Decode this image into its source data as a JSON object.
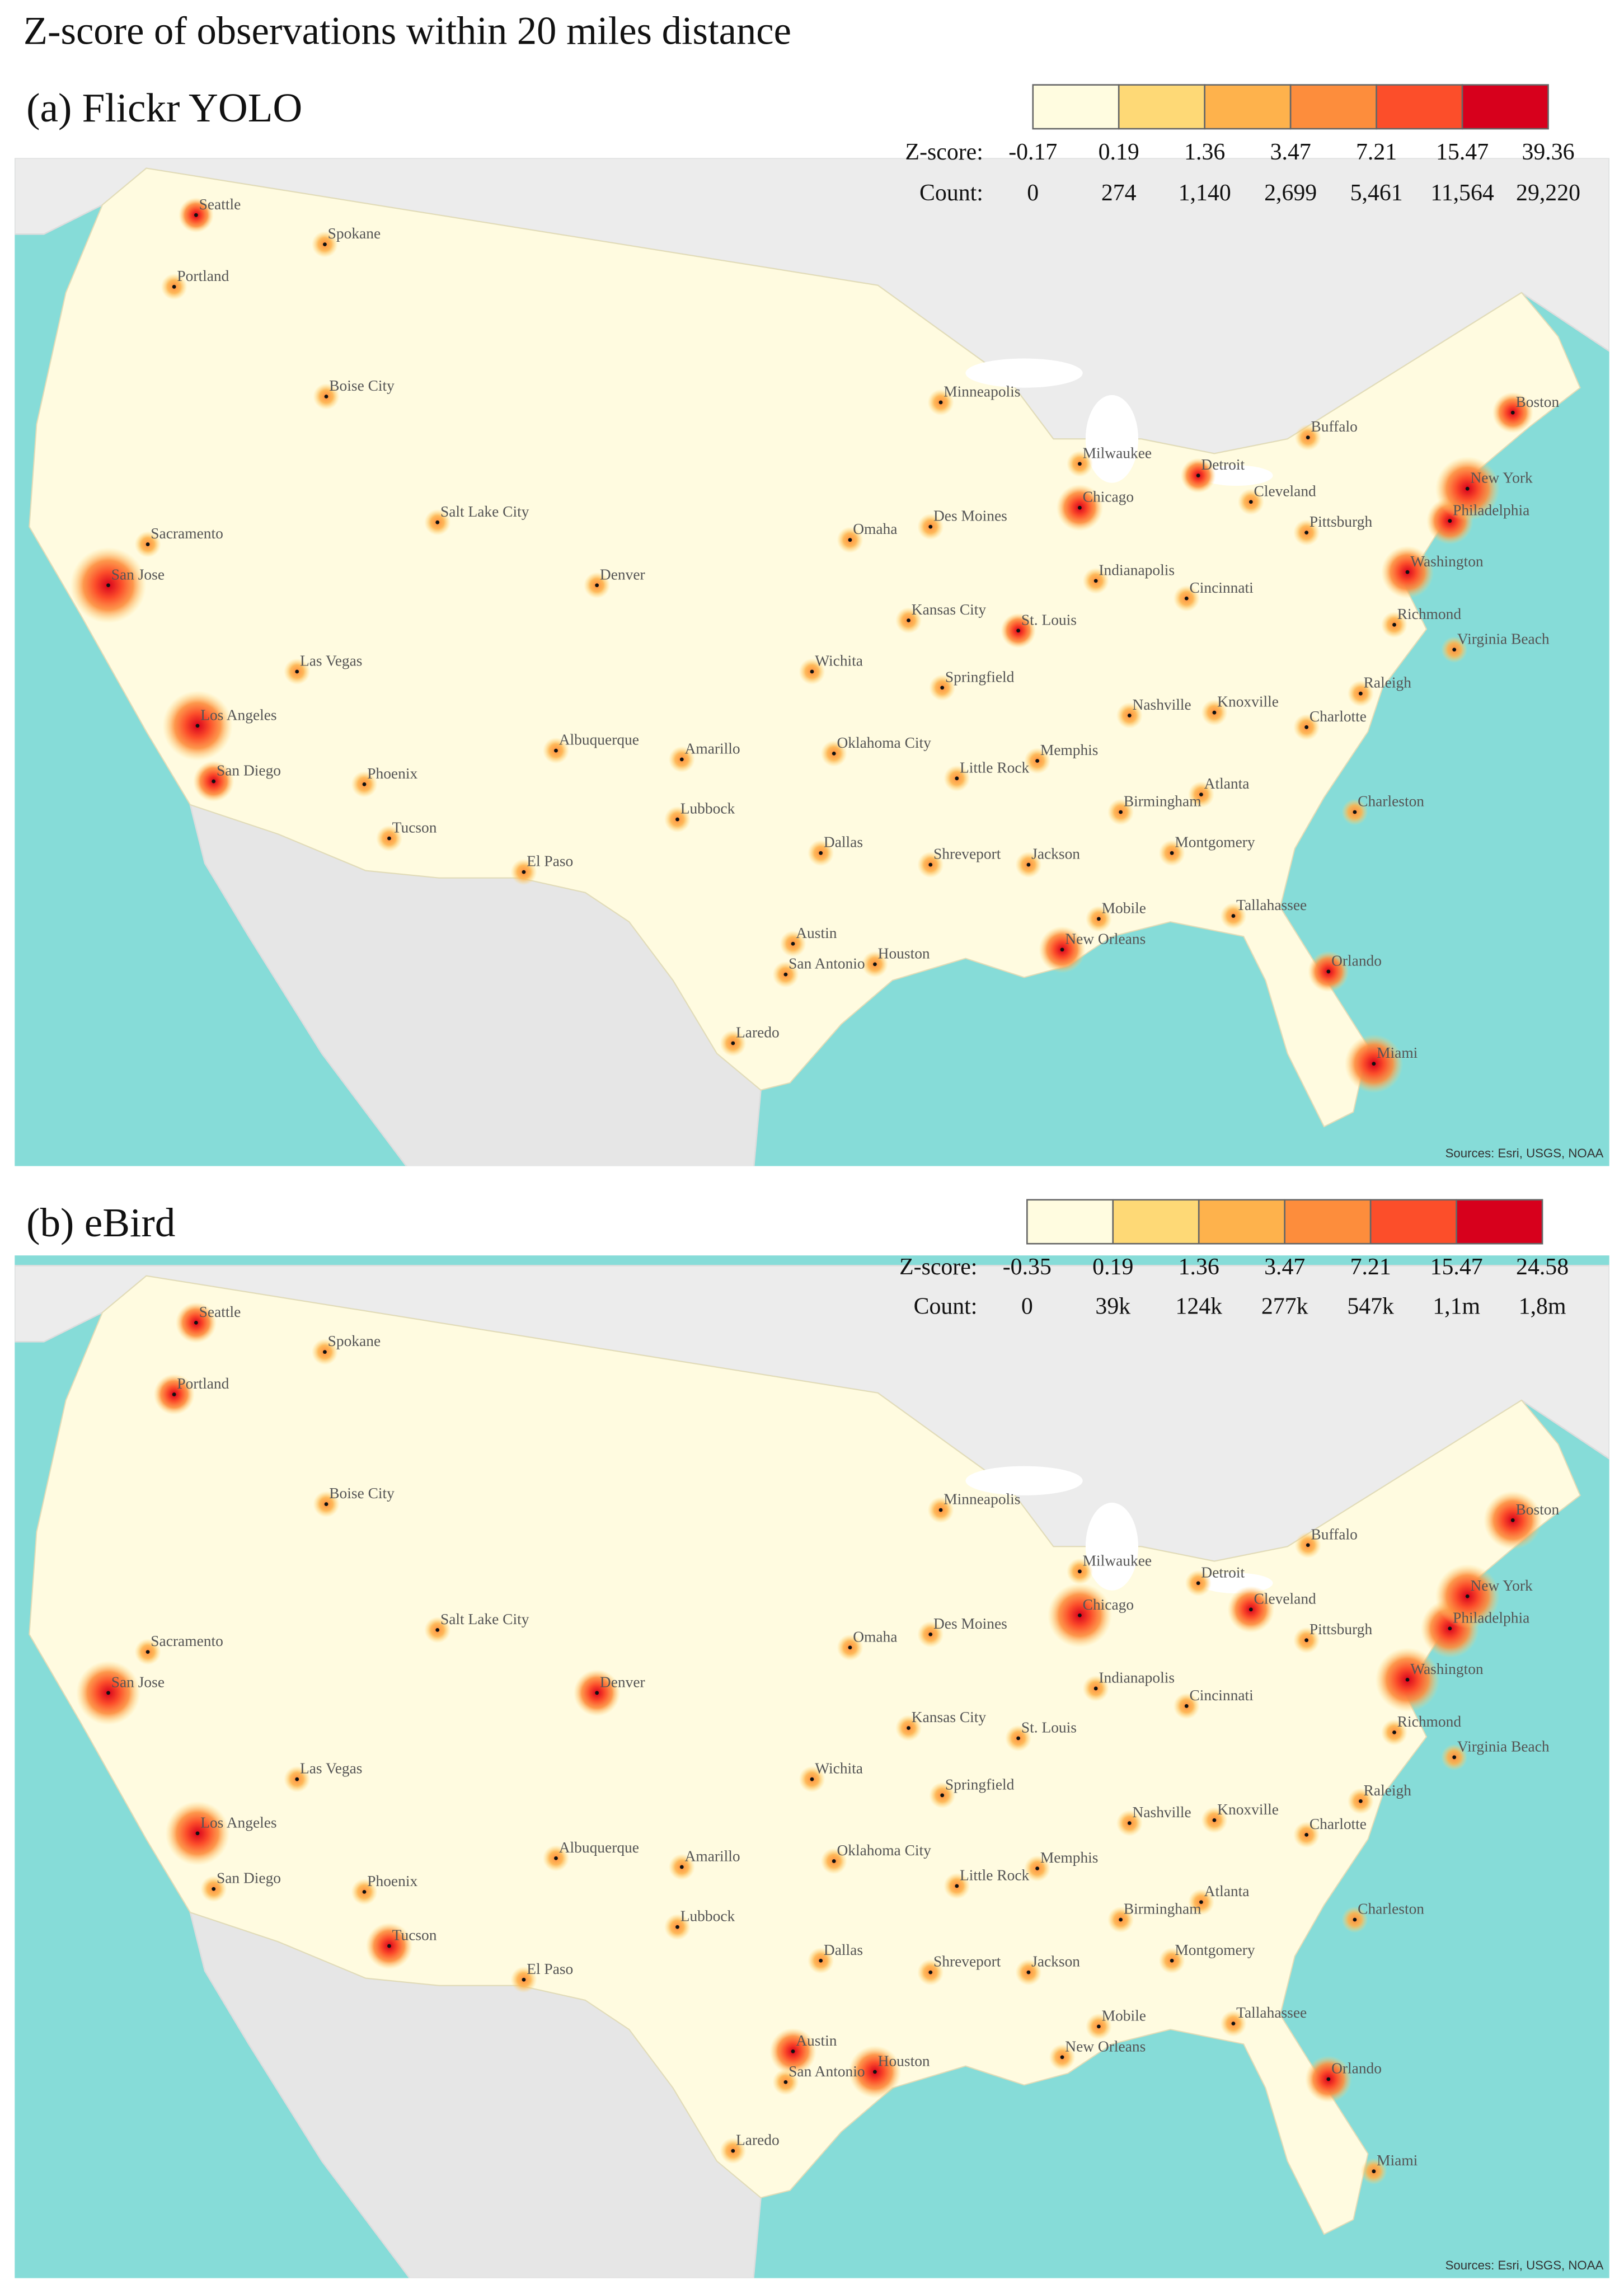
{
  "title": "Z-score of observations within 20 miles distance",
  "colors": [
    "#fffce0",
    "#fed976",
    "#feb24c",
    "#fd8d3c",
    "#fc4e2a",
    "#d7001c"
  ],
  "panels": [
    {
      "label": "(a) Flickr YOLO",
      "zscore_title": "Z-score:",
      "count_title": "Count:",
      "zscore_breaks": [
        -0.17,
        0.19,
        1.36,
        3.47,
        7.21,
        15.47,
        39.36
      ],
      "count_breaks": [
        0,
        274,
        {
          "value": 1140,
          "label": "1,140"
        },
        {
          "value": 2699,
          "label": "2,699"
        },
        {
          "value": 5461,
          "label": "5,461"
        },
        {
          "value": 11564,
          "label": "11,564"
        },
        {
          "value": 29220,
          "label": "29,220"
        }
      ],
      "cities": [
        "Seattle",
        "Spokane",
        "Portland",
        "Boise City",
        "Salt Lake City",
        "Sacramento",
        "San Jose",
        "Denver",
        "Las Vegas",
        "Los Angeles",
        "San Diego",
        "Phoenix",
        "Tucson",
        "Albuquerque",
        "Amarillo",
        "Lubbock",
        "El Paso",
        "Minneapolis",
        "Omaha",
        "Des Moines",
        "Kansas City",
        "Wichita",
        "Oklahoma City",
        "Dallas",
        "Austin",
        "San Antonio",
        "Houston",
        "Laredo",
        "Shreveport",
        "Little Rock",
        "Memphis",
        "Jackson",
        "St. Louis",
        "Springfield",
        "Milwaukee",
        "Chicago",
        "Detroit",
        "Cleveland",
        "Indianapolis",
        "Cincinnati",
        "Nashville",
        "Knoxville",
        "Birmingham",
        "Atlanta",
        "Montgomery",
        "Mobile",
        "New Orleans",
        "Tallahassee",
        "Orlando",
        "Miami",
        "Charleston",
        "Charlotte",
        "Raleigh",
        "Richmond",
        "Virginia Beach",
        "Washington",
        "Pittsburgh",
        "Philadelphia",
        "New York",
        "Buffalo",
        "Boston"
      ],
      "sources": "Sources: Esri, USGS, NOAA"
    },
    {
      "label": "(b) eBird",
      "zscore_title": "Z-score:",
      "count_title": "Count:",
      "zscore_breaks": [
        -0.35,
        0.19,
        1.36,
        3.47,
        7.21,
        15.47,
        24.58
      ],
      "count_breaks": [
        0,
        {
          "value": 39000,
          "label": "39k"
        },
        {
          "value": 124000,
          "label": "124k"
        },
        {
          "value": 277000,
          "label": "277k"
        },
        {
          "value": 547000,
          "label": "547k"
        },
        {
          "value": 1100000,
          "label": "1,1m"
        },
        {
          "value": 1800000,
          "label": "1,8m"
        }
      ],
      "cities": [
        "Seattle",
        "Spokane",
        "Portland",
        "Boise City",
        "Salt Lake City",
        "Sacramento",
        "San Jose",
        "Denver",
        "Las Vegas",
        "Los Angeles",
        "San Diego",
        "Phoenix",
        "Tucson",
        "Albuquerque",
        "Amarillo",
        "Lubbock",
        "El Paso",
        "Minneapolis",
        "Omaha",
        "Des Moines",
        "Kansas City",
        "Wichita",
        "Oklahoma City",
        "Dallas",
        "Austin",
        "San Antonio",
        "Houston",
        "Laredo",
        "Shreveport",
        "Little Rock",
        "Memphis",
        "Jackson",
        "St. Louis",
        "Springfield",
        "Milwaukee",
        "Chicago",
        "Detroit",
        "Cleveland",
        "Indianapolis",
        "Cincinnati",
        "Nashville",
        "Knoxville",
        "Birmingham",
        "Atlanta",
        "Montgomery",
        "Mobile",
        "New Orleans",
        "Tallahassee",
        "Orlando",
        "Miami",
        "Charleston",
        "Charlotte",
        "Raleigh",
        "Richmond",
        "Virginia Beach",
        "Washington",
        "Pittsburgh",
        "Philadelphia",
        "New York",
        "Buffalo",
        "Boston"
      ],
      "sources": "Sources: Esri, USGS, NOAA"
    }
  ]
}
